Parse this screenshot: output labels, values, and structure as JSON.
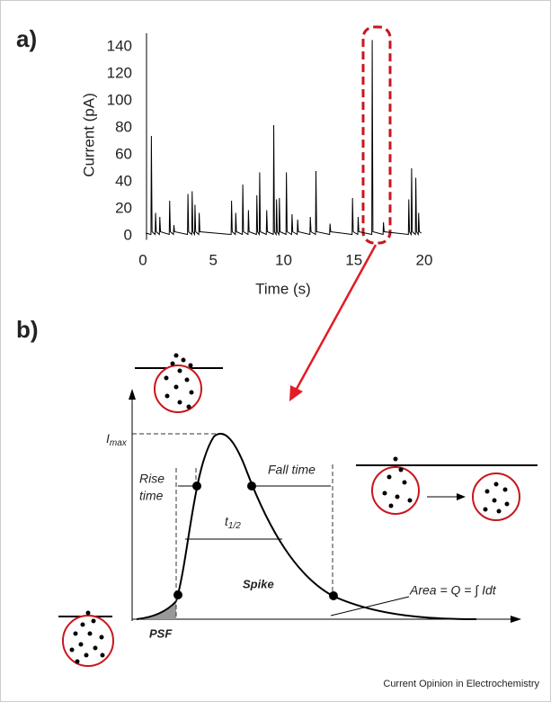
{
  "chart_data": {
    "type": "line",
    "xlabel": "Time (s)",
    "ylabel": "Current (pA)",
    "color": "#000000",
    "xlim": [
      0,
      20
    ],
    "xticks": [
      0,
      5,
      10,
      15,
      20
    ],
    "ylim": [
      -3,
      150
    ],
    "yticks": [
      0,
      20,
      40,
      60,
      80,
      100,
      120,
      140
    ],
    "x": [
      0.2,
      0.57,
      0.6,
      0.65,
      0.87,
      0.9,
      0.95,
      1.17,
      1.2,
      1.25,
      1.87,
      1.9,
      1.95,
      2.17,
      2.2,
      2.25,
      3.17,
      3.2,
      3.25,
      3.47,
      3.5,
      3.55,
      3.67,
      3.7,
      3.75,
      3.97,
      4.0,
      4.05,
      6.27,
      6.3,
      6.35,
      6.57,
      6.6,
      6.65,
      7.07,
      7.1,
      7.15,
      7.47,
      7.5,
      7.55,
      8.07,
      8.1,
      8.15,
      8.27,
      8.3,
      8.35,
      8.77,
      8.8,
      8.85,
      9.27,
      9.3,
      9.35,
      9.47,
      9.5,
      9.55,
      9.67,
      9.7,
      9.75,
      10.17,
      10.2,
      10.25,
      10.57,
      10.6,
      10.65,
      10.97,
      11.0,
      11.05,
      11.87,
      11.9,
      11.95,
      12.27,
      12.3,
      12.35,
      13.27,
      13.3,
      13.35,
      14.87,
      14.9,
      14.95,
      15.27,
      15.3,
      15.35,
      16.27,
      16.3,
      16.35,
      17.07,
      17.1,
      17.15,
      18.87,
      18.9,
      18.95,
      19.07,
      19.1,
      19.15,
      19.37,
      19.4,
      19.45,
      19.57,
      19.6,
      19.65,
      19.8
    ],
    "values": [
      2,
      1,
      74,
      3,
      1,
      17,
      3,
      1,
      14,
      3,
      1,
      26,
      3,
      1,
      8,
      3,
      1,
      31,
      3,
      1,
      33,
      3,
      1,
      23,
      3,
      1,
      17,
      3,
      1,
      26,
      3,
      1,
      17,
      3,
      1,
      38,
      3,
      1,
      19,
      3,
      1,
      30,
      3,
      1,
      47,
      3,
      1,
      19,
      3,
      1,
      82,
      3,
      1,
      27,
      3,
      1,
      28,
      3,
      1,
      47,
      3,
      1,
      16,
      3,
      1,
      12,
      3,
      1,
      14,
      3,
      1,
      48,
      3,
      1,
      9,
      3,
      1,
      28,
      3,
      1,
      14,
      3,
      1,
      145,
      3,
      1,
      10,
      3,
      1,
      27,
      3,
      1,
      50,
      3,
      1,
      43,
      3,
      1,
      17,
      3,
      2
    ]
  },
  "panel_labels": [
    "a)",
    "b)"
  ],
  "diagram": {
    "imax": {
      "main": "I",
      "sub": "max"
    },
    "rise_time": [
      "Rise",
      "time"
    ],
    "fall_time": "Fall time",
    "t_half": {
      "main": "t",
      "sub": "1/2"
    },
    "spike": "Spike",
    "area": "Area = Q = ∫ Idt",
    "psf": "PSF"
  },
  "footer": "Current Opinion in Electrochemistry"
}
